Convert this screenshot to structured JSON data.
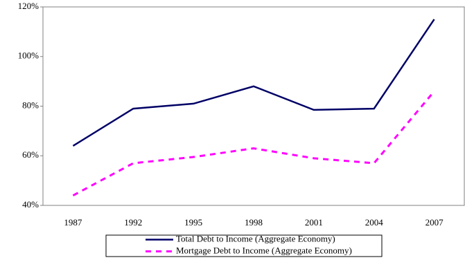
{
  "chart_data": {
    "type": "line",
    "categories": [
      "1987",
      "1992",
      "1995",
      "1998",
      "2001",
      "2004",
      "2007"
    ],
    "series": [
      {
        "name": "Total Debt to Income (Aggregate Economy)",
        "color": "#000066",
        "style": "solid",
        "values": [
          64,
          79,
          81,
          88,
          78.5,
          79,
          115
        ]
      },
      {
        "name": "Mortgage Debt to Income (Aggregate Economy)",
        "color": "#ff00ff",
        "style": "dashed",
        "values": [
          44,
          57,
          59.5,
          63,
          59,
          57,
          86
        ]
      }
    ],
    "ylim": [
      40,
      120
    ],
    "yticks": [
      {
        "value": 40,
        "label": "40%"
      },
      {
        "value": 60,
        "label": "60%"
      },
      {
        "value": 80,
        "label": "80%"
      },
      {
        "value": 100,
        "label": "100%"
      },
      {
        "value": 120,
        "label": "120%"
      }
    ],
    "grid": false
  }
}
